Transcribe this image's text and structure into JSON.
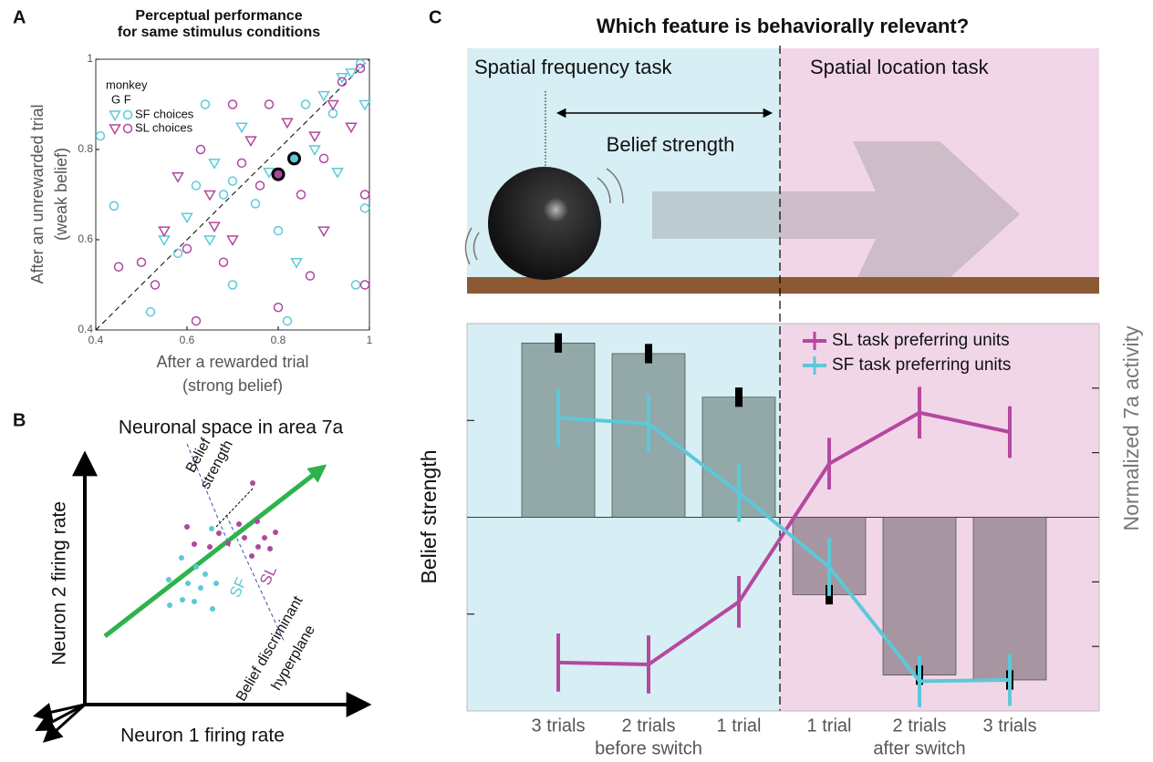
{
  "panel_labels": [
    "A",
    "B",
    "C"
  ],
  "chart_data": [
    {
      "type": "scatter",
      "title": [
        "Perceptual performance",
        "for same stimulus conditions"
      ],
      "x_label": [
        "After a rewarded trial",
        "(strong belief)"
      ],
      "y_label": [
        "After an unrewarded trial",
        "(weak belief)"
      ],
      "legend_title": "monkey",
      "legend_markers": "G F",
      "xlim": [
        0.4,
        1
      ],
      "ylim": [
        0.4,
        1
      ],
      "xticks": [
        0.4,
        0.6,
        0.8,
        1
      ],
      "yticks": [
        0.4,
        0.6,
        0.8,
        1
      ],
      "series": [
        {
          "name": "SF choices",
          "color": "#5ccbd9",
          "x": [
            0.41,
            0.44,
            0.52,
            0.55,
            0.58,
            0.6,
            0.62,
            0.64,
            0.65,
            0.68,
            0.7,
            0.72,
            0.75,
            0.78,
            0.8,
            0.82,
            0.84,
            0.86,
            0.88,
            0.9,
            0.92,
            0.94,
            0.96,
            0.98,
            0.99,
            0.97,
            0.99,
            0.66,
            0.7,
            0.93
          ],
          "y": [
            0.83,
            0.675,
            0.44,
            0.6,
            0.57,
            0.65,
            0.72,
            0.9,
            0.6,
            0.7,
            0.5,
            0.85,
            0.68,
            0.75,
            0.62,
            0.42,
            0.55,
            0.9,
            0.8,
            0.92,
            0.88,
            0.96,
            0.97,
            0.99,
            0.9,
            0.5,
            0.67,
            0.77,
            0.73,
            0.75
          ],
          "markers": [
            "circle",
            "circle",
            "circle",
            "triangle",
            "circle",
            "triangle",
            "circle",
            "circle",
            "triangle",
            "circle",
            "circle",
            "triangle",
            "circle",
            "triangle",
            "circle",
            "circle",
            "triangle",
            "circle",
            "triangle",
            "triangle",
            "circle",
            "triangle",
            "triangle",
            "circle",
            "triangle",
            "circle",
            "circle",
            "triangle",
            "circle",
            "triangle"
          ]
        },
        {
          "name": "SL choices",
          "color": "#b0479e",
          "x": [
            0.45,
            0.5,
            0.53,
            0.55,
            0.6,
            0.63,
            0.66,
            0.68,
            0.7,
            0.72,
            0.74,
            0.76,
            0.78,
            0.8,
            0.82,
            0.85,
            0.87,
            0.88,
            0.9,
            0.92,
            0.94,
            0.96,
            0.98,
            0.99,
            0.99,
            0.9,
            0.65,
            0.7,
            0.58,
            0.62
          ],
          "y": [
            0.54,
            0.55,
            0.5,
            0.62,
            0.58,
            0.8,
            0.63,
            0.55,
            0.6,
            0.77,
            0.82,
            0.72,
            0.9,
            0.45,
            0.86,
            0.7,
            0.52,
            0.83,
            0.78,
            0.9,
            0.95,
            0.85,
            0.98,
            0.5,
            0.7,
            0.62,
            0.7,
            0.9,
            0.74,
            0.42
          ],
          "markers": [
            "circle",
            "circle",
            "circle",
            "triangle",
            "circle",
            "circle",
            "triangle",
            "circle",
            "triangle",
            "circle",
            "triangle",
            "circle",
            "circle",
            "circle",
            "triangle",
            "circle",
            "circle",
            "triangle",
            "circle",
            "triangle",
            "circle",
            "triangle",
            "circle",
            "circle",
            "circle",
            "triangle",
            "triangle",
            "circle",
            "triangle",
            "circle"
          ]
        }
      ],
      "highlight": [
        {
          "x": 0.8,
          "y": 0.745,
          "color": "#b0479e"
        },
        {
          "x": 0.835,
          "y": 0.78,
          "color": "#5ccbd9"
        }
      ]
    },
    {
      "type": "bar",
      "categories": [
        "3 trials",
        "2 trials",
        "1 trial",
        "1 trial",
        "2 trials",
        "3 trials"
      ],
      "groups": [
        "before switch",
        "after switch"
      ],
      "background_colors": [
        "#d6eef4",
        "#f1d6e8"
      ],
      "y_label": "Belief strength",
      "y2_label": "Normalized 7a activity",
      "values": [
        1.8,
        1.69,
        1.24,
        -0.8,
        -1.63,
        -1.68
      ],
      "errors": [
        0.1,
        0.1,
        0.1,
        0.1,
        0.1,
        0.1
      ],
      "bar_colors": [
        "#93a8a8",
        "#93a8a8",
        "#93a8a8",
        "#a796a2",
        "#a796a2",
        "#a796a2"
      ],
      "ylim": [
        -2,
        2
      ],
      "yticks": [
        -1,
        1
      ],
      "y2lim": [
        -3,
        3
      ],
      "y2ticks": [
        -2,
        -1,
        1,
        2
      ],
      "series": [
        {
          "name": "SL task preferring units",
          "color": "#b5489f",
          "axis": "y2",
          "values": [
            -2.25,
            -2.28,
            -1.31,
            0.83,
            1.62,
            1.32
          ],
          "errors": [
            0.45,
            0.45,
            0.4,
            0.4,
            0.4,
            0.4
          ]
        },
        {
          "name": "SF task preferring units",
          "color": "#5cc8d8",
          "axis": "y2",
          "values": [
            1.54,
            1.45,
            0.38,
            -0.77,
            -2.54,
            -2.52
          ],
          "errors": [
            0.45,
            0.45,
            0.45,
            0.45,
            0.4,
            0.4
          ]
        }
      ]
    }
  ],
  "diagram_b": {
    "title": "Neuronal space in area 7a",
    "y_axis": "Neuron 2 firing rate",
    "x_axis": "Neuron 1 firing rate",
    "belief": [
      "Belief",
      "strength"
    ],
    "sf": "SF",
    "sl": "SL",
    "hyperplane": [
      "Belief discriminant",
      "hyperplane"
    ]
  },
  "schematic_c": {
    "title": "Which feature is behaviorally relevant?",
    "left_task": "Spatial frequency task",
    "right_task": "Spatial location task",
    "belief": "Belief strength"
  }
}
